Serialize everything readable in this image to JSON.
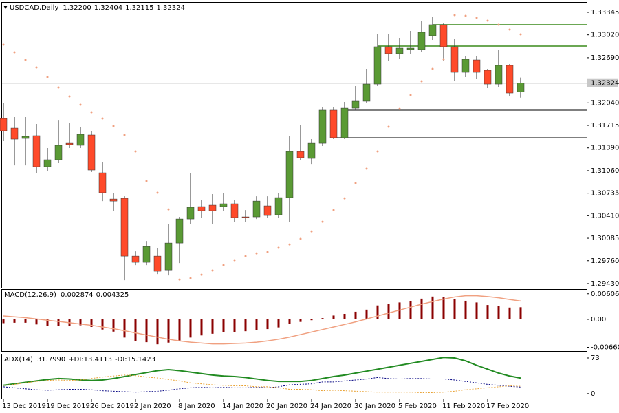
{
  "chart_data": [
    {
      "type": "candlestick",
      "title": "USDCAD,Daily",
      "title_values": [
        "1.32200",
        "1.32404",
        "1.32115",
        "1.32324"
      ],
      "categories": [
        "13 Dec 2019",
        null,
        null,
        null,
        "19 Dec 2019",
        null,
        null,
        null,
        "26 Dec 2019",
        null,
        null,
        null,
        "2 Jan 2020",
        null,
        null,
        null,
        "8 Jan 2020",
        null,
        null,
        null,
        "14 Jan 2020",
        null,
        null,
        null,
        "20 Jan 2020",
        null,
        null,
        null,
        "24 Jan 2020",
        null,
        null,
        null,
        "30 Jan 2020",
        null,
        null,
        null,
        "5 Feb 2020",
        null,
        null,
        null,
        "11 Feb 2020",
        null,
        null,
        null,
        "17 Feb 2020",
        null,
        null,
        null
      ],
      "open": [
        1.31814,
        1.31675,
        1.31526,
        1.31566,
        1.31118,
        1.31218,
        1.31456,
        1.31427,
        1.31576,
        1.31029,
        1.30651,
        1.30661,
        1.29826,
        1.29737,
        1.29826,
        1.29627,
        1.30015,
        1.30363,
        1.30542,
        1.30562,
        1.30542,
        1.30582,
        1.30393,
        1.30393,
        1.30552,
        1.30423,
        1.30671,
        1.31337,
        1.31238,
        1.31456,
        1.31934,
        1.31536,
        1.31963,
        1.32063,
        1.32311,
        1.32848,
        1.32749,
        1.32808,
        1.32808,
        1.33007,
        1.33166,
        1.32848,
        1.3248,
        1.32659,
        1.3251,
        1.32311,
        1.3258,
        1.322
      ],
      "high": [
        1.32033,
        1.31834,
        1.31834,
        1.31735,
        1.31387,
        1.31784,
        1.31755,
        1.31685,
        1.31635,
        1.31188,
        1.30741,
        1.30691,
        1.29896,
        1.30045,
        1.29946,
        1.30293,
        1.30393,
        1.31019,
        1.30641,
        1.30721,
        1.30741,
        1.30641,
        1.30492,
        1.30691,
        1.30691,
        1.30741,
        1.31566,
        1.31715,
        1.31516,
        1.31983,
        1.31983,
        1.32053,
        1.32281,
        1.3253,
        1.33027,
        1.33027,
        1.32977,
        1.33077,
        1.33226,
        1.33275,
        1.33186,
        1.32957,
        1.32709,
        1.32709,
        1.3253,
        1.32808,
        1.326,
        1.32404
      ],
      "low": [
        1.31486,
        1.31138,
        1.31138,
        1.31019,
        1.31059,
        1.31168,
        1.31387,
        1.31387,
        1.31039,
        1.30621,
        1.30482,
        1.29478,
        1.29697,
        1.29697,
        1.29568,
        1.29548,
        1.29727,
        1.30293,
        1.30383,
        1.30293,
        1.30482,
        1.30323,
        1.30323,
        1.30363,
        1.30383,
        1.30383,
        1.30323,
        1.31218,
        1.31158,
        1.31417,
        1.31516,
        1.31516,
        1.31934,
        1.32033,
        1.32281,
        1.32649,
        1.32679,
        1.32749,
        1.32778,
        1.32947,
        1.32649,
        1.32351,
        1.32411,
        1.32381,
        1.32252,
        1.32272,
        1.32132,
        1.32115
      ],
      "close": [
        1.31635,
        1.31516,
        1.31556,
        1.31118,
        1.31218,
        1.31427,
        1.31437,
        1.31586,
        1.31069,
        1.30741,
        1.30621,
        1.29826,
        1.29737,
        1.29965,
        1.29608,
        1.30015,
        1.30363,
        1.30532,
        1.30482,
        1.30482,
        1.30582,
        1.30383,
        1.30383,
        1.30621,
        1.30413,
        1.30671,
        1.31337,
        1.31248,
        1.31456,
        1.31934,
        1.31536,
        1.31963,
        1.32063,
        1.32311,
        1.32848,
        1.32749,
        1.32828,
        1.32828,
        1.33057,
        1.33166,
        1.32848,
        1.3248,
        1.32669,
        1.3248,
        1.32311,
        1.3258,
        1.32182,
        1.32324
      ],
      "up_color": "#5a9a34",
      "down_color": "#ff4a2a",
      "sar": {
        "color": "#f0a080",
        "values": [
          1.32878,
          1.32769,
          1.32659,
          1.3255,
          1.32411,
          1.32262,
          1.32132,
          1.32013,
          1.31904,
          1.31814,
          1.31705,
          1.31576,
          1.31337,
          1.3091,
          1.30741,
          1.30502,
          1.29488,
          1.29508,
          1.29558,
          1.29618,
          1.29697,
          1.29767,
          1.29826,
          1.29866,
          1.29886,
          1.29946,
          1.29995,
          1.30075,
          1.30184,
          1.30323,
          1.30492,
          1.30661,
          1.3088,
          1.31089,
          1.31337,
          1.31695,
          1.31953,
          1.32152,
          1.32351,
          1.3253,
          1.32669,
          1.33305,
          1.33295,
          1.33266,
          1.33226,
          1.33166,
          1.33097,
          1.33027
        ]
      },
      "levels": [
        {
          "value": 1.33166,
          "color": "#3a8a1a",
          "from": 39
        },
        {
          "value": 1.32858,
          "color": "#3a8a1a",
          "from": 34
        },
        {
          "value": 1.31934,
          "color": "#555555",
          "from": 31
        },
        {
          "value": 1.31536,
          "color": "#555555",
          "from": 30
        }
      ],
      "ylim": [
        1.2937,
        1.33474
      ],
      "yticks": [
        1.33345,
        {
          "value": 1.3302,
          "label": "1.33020"
        },
        {
          "value": 1.3269,
          "label": "1.32690"
        },
        {
          "value": 1.3204,
          "label": "1.32040"
        },
        1.31715,
        {
          "value": 1.3139,
          "label": "1.31390"
        },
        {
          "value": 1.3106,
          "label": "1.31060"
        },
        1.30735,
        {
          "value": 1.3041,
          "label": "1.30410"
        },
        1.30085,
        {
          "value": 1.2976,
          "label": "1.29760"
        },
        {
          "value": 1.2943,
          "label": "1.29430"
        }
      ]
    },
    {
      "type": "bar",
      "title": "MACD(12,26,9)",
      "title_values": [
        "0.002874",
        "0.004325"
      ],
      "color": "#8b0000",
      "values": [
        -0.0009,
        -0.0008,
        -0.0008,
        -0.0012,
        -0.0015,
        -0.0016,
        -0.0015,
        -0.0014,
        -0.0018,
        -0.0024,
        -0.0029,
        -0.0043,
        -0.0051,
        -0.0054,
        -0.0059,
        -0.0055,
        -0.005,
        -0.0043,
        -0.0038,
        -0.0034,
        -0.0031,
        -0.003,
        -0.0028,
        -0.0026,
        -0.0023,
        -0.0019,
        -0.0011,
        -0.0006,
        -0.0002,
        0.0003,
        0.0009,
        0.0013,
        0.0018,
        0.0023,
        0.0033,
        0.0037,
        0.004,
        0.0043,
        0.0049,
        0.0054,
        0.0052,
        0.0048,
        0.0044,
        0.004,
        0.0034,
        0.0032,
        0.0028,
        0.002874
      ],
      "signal": {
        "color": "#f0a080",
        "values": [
          0.0008,
          0.0006,
          0.0004,
          0.0001,
          -0.0002,
          -0.0005,
          -0.0008,
          -0.0011,
          -0.0014,
          -0.0018,
          -0.0022,
          -0.0027,
          -0.0032,
          -0.0037,
          -0.0042,
          -0.0047,
          -0.0051,
          -0.0054,
          -0.0056,
          -0.0058,
          -0.0058,
          -0.0057,
          -0.0056,
          -0.0054,
          -0.0051,
          -0.0047,
          -0.0042,
          -0.0036,
          -0.003,
          -0.0024,
          -0.0018,
          -0.0012,
          -0.0006,
          0.0001,
          0.0008,
          0.0015,
          0.0022,
          0.0029,
          0.0036,
          0.0042,
          0.0048,
          0.0053,
          0.0056,
          0.0056,
          0.0054,
          0.0051,
          0.0047,
          0.004325
        ]
      },
      "ylim": [
        -0.0075,
        0.007
      ],
      "yticks": [
        0.006061,
        {
          "value": 0,
          "label": "0.00"
        },
        -0.006609
      ]
    },
    {
      "type": "line",
      "title": "ADX(14)",
      "title_values": [
        "31.7990",
        "+DI:13.4113",
        "-DI:15.1423"
      ],
      "series": [
        {
          "color": "#228b22",
          "width": 2,
          "dash": false,
          "values": [
            17,
            20,
            23,
            26,
            29,
            31,
            30,
            28,
            27,
            28,
            31,
            35,
            39,
            43,
            47,
            49,
            47,
            44,
            41,
            38,
            36,
            35,
            33,
            30,
            27,
            25,
            25,
            25,
            27,
            31,
            35,
            38,
            42,
            46,
            50,
            54,
            58,
            62,
            66,
            70,
            74,
            73,
            67,
            58,
            50,
            42,
            36,
            31.799
          ]
        },
        {
          "color": "#000080",
          "width": 1,
          "dash": true,
          "values": [
            14,
            12,
            10,
            8,
            7,
            8,
            9,
            9,
            8,
            6,
            5,
            4,
            3,
            4,
            5,
            7,
            10,
            12,
            13,
            12,
            13,
            12,
            12,
            13,
            12,
            14,
            18,
            19,
            20,
            24,
            24,
            26,
            28,
            30,
            33,
            31,
            30,
            31,
            31,
            30,
            30,
            28,
            25,
            22,
            19,
            17,
            15,
            13.4113
          ]
        },
        {
          "color": "#e8a030",
          "width": 1,
          "dash": true,
          "values": [
            17,
            19,
            22,
            25,
            27,
            28,
            27,
            28,
            31,
            34,
            36,
            38,
            37,
            34,
            32,
            29,
            26,
            22,
            20,
            18,
            17,
            16,
            16,
            14,
            14,
            12,
            9,
            9,
            8,
            6,
            7,
            6,
            5,
            4,
            3,
            3,
            3,
            3,
            2,
            2,
            3,
            5,
            8,
            10,
            12,
            14,
            16,
            15.1423
          ]
        }
      ],
      "ylim": [
        -10,
        80
      ],
      "yticks": [
        73,
        0
      ]
    }
  ]
}
